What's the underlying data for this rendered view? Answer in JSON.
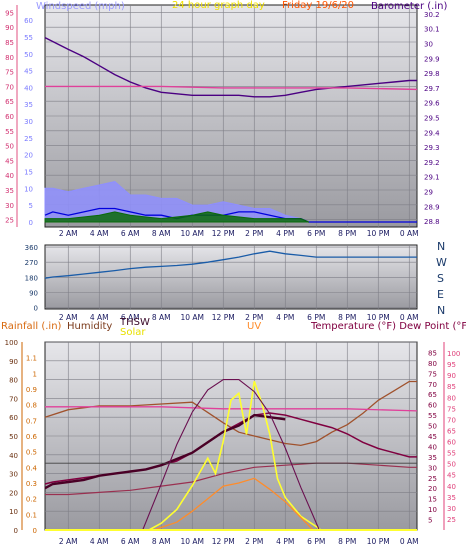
{
  "colors": {
    "background": "#ffffff",
    "plot_bg_top": "#e4e4e8",
    "plot_bg_bottom": "#9a9aa0",
    "grid": "#7e7e86",
    "frame": "#222222",
    "wind_avg": "#8f8fff",
    "wind_speed": "#0000dd",
    "wind_gust": "#0a6a0a",
    "barometer": "#4b0082",
    "hi_limit": "#e0409a",
    "wind_dir": "#1a5ca8",
    "humidity": "#a0522d",
    "thsw": "#4a0026",
    "solar": "#ffff30",
    "uv": "#ff8c2a",
    "temperature": "#800040",
    "dew_point": "#9a3050",
    "rain": "#cc6600"
  },
  "header": {
    "windspeed_label": "Windspeed (mph)",
    "title": "24 hour graph day",
    "date_label": "Friday 19/6/20",
    "barometer_label": "Barometer (.in)"
  },
  "x_ticks": [
    "2 AM",
    "4 AM",
    "6 AM",
    "8 AM",
    "10 AM",
    "12 PM",
    "2 PM",
    "4 PM",
    "6 PM",
    "8 PM",
    "10 PM",
    "0 AM"
  ],
  "panel_mid": {
    "compass": [
      "N",
      "W",
      "S",
      "E",
      "N"
    ]
  },
  "panel_bottom": {
    "rainfall_label": "Rainfall (.in)",
    "humidity_label": "Humidity",
    "thsw_label": "THSW",
    "solar_label": "Solar",
    "uv_label": "UV",
    "temp_label": "Temperature (°F) Dew Point (°F)"
  },
  "chart_data": [
    {
      "type": "line",
      "panel": "wind-barometer",
      "x_unit": "hour",
      "x_range": [
        0.5,
        24.5
      ],
      "axes": {
        "left_mph": {
          "ticks": [
            25,
            30,
            35,
            40,
            45,
            50,
            55,
            60,
            65,
            70,
            75,
            80,
            85,
            90,
            95
          ],
          "range": [
            22.5,
            97.5
          ]
        },
        "left_kmh": {
          "ticks": [
            0,
            5,
            10,
            15,
            20,
            25,
            30,
            35,
            40,
            45,
            50,
            55,
            60
          ],
          "range": [
            -1.5,
            64.5
          ]
        },
        "right_inHg": {
          "ticks": [
            28.8,
            28.9,
            29,
            29.1,
            29.2,
            29.3,
            29.4,
            29.5,
            29.6,
            29.7,
            29.8,
            29.9,
            30,
            30.1,
            30.2
          ],
          "range": [
            28.76,
            30.26
          ]
        }
      },
      "series": [
        {
          "name": "Barometer (.in)",
          "axis": "right_inHg",
          "x": [
            0.5,
            2,
            3,
            4,
            5,
            6,
            7,
            8,
            9,
            10,
            11,
            12,
            13,
            14,
            15,
            16,
            17,
            18,
            19,
            20,
            21,
            22,
            23,
            24,
            24.5
          ],
          "y": [
            30.04,
            29.96,
            29.91,
            29.85,
            29.79,
            29.74,
            29.7,
            29.67,
            29.66,
            29.65,
            29.65,
            29.65,
            29.65,
            29.64,
            29.64,
            29.65,
            29.67,
            29.69,
            29.7,
            29.71,
            29.72,
            29.73,
            29.74,
            29.75,
            29.75
          ]
        },
        {
          "name": "hi-limit",
          "axis": "right_inHg",
          "x": [
            0.5,
            4,
            8,
            12,
            16,
            20,
            24.5
          ],
          "y": [
            29.71,
            29.71,
            29.71,
            29.7,
            29.7,
            29.7,
            29.69
          ]
        },
        {
          "name": "wind-avg",
          "axis": "left_kmh",
          "x": [
            0.5,
            1,
            2,
            3,
            4,
            5,
            6,
            7,
            8,
            9,
            10,
            11,
            12,
            13,
            14,
            15,
            16,
            17,
            17.3
          ],
          "y": [
            10,
            10,
            9,
            10,
            11,
            12,
            8,
            8,
            7,
            7,
            5,
            5,
            6,
            5,
            4,
            4,
            2,
            1,
            0
          ]
        },
        {
          "name": "wind-speed",
          "axis": "left_kmh",
          "x": [
            0.5,
            1,
            2,
            3,
            4,
            5,
            6,
            7,
            8,
            9,
            10,
            11,
            12,
            13,
            14,
            15,
            16,
            17,
            17.5,
            24.5
          ],
          "y": [
            2,
            3,
            2,
            3,
            4,
            4,
            3,
            2,
            2,
            1,
            2,
            2,
            2,
            3,
            3,
            2,
            1,
            1,
            0,
            0
          ]
        },
        {
          "name": "wind-gust",
          "axis": "left_kmh",
          "x": [
            0.5,
            2,
            4,
            5,
            6,
            8,
            10,
            11,
            12,
            14,
            16,
            17,
            17.5
          ],
          "y": [
            1,
            1,
            2,
            3,
            2,
            1,
            2,
            3,
            2,
            1,
            1,
            1,
            0
          ]
        }
      ]
    },
    {
      "type": "line",
      "panel": "wind-direction",
      "x_unit": "hour",
      "x_range": [
        0.5,
        24.5
      ],
      "axes": {
        "left_deg": {
          "ticks": [
            0,
            90,
            180,
            270,
            360
          ],
          "range": [
            -8,
            372
          ]
        }
      },
      "series": [
        {
          "name": "wind-direction",
          "axis": "left_deg",
          "x": [
            0.5,
            1,
            2,
            3,
            4,
            5,
            6,
            7,
            8,
            9,
            10,
            11,
            12,
            13,
            14,
            15,
            16,
            17,
            18,
            19,
            20,
            21,
            22,
            23,
            24,
            24.5
          ],
          "y": [
            175,
            182,
            190,
            200,
            210,
            220,
            232,
            240,
            245,
            250,
            258,
            270,
            285,
            300,
            320,
            335,
            320,
            310,
            300,
            300,
            300,
            300,
            300,
            300,
            300,
            300
          ]
        }
      ]
    },
    {
      "type": "line",
      "panel": "temperature-solar",
      "x_unit": "hour",
      "x_range": [
        0.5,
        24.5
      ],
      "axes": {
        "humidity_pct": {
          "ticks": [
            0,
            10,
            20,
            30,
            40,
            50,
            60,
            70,
            80,
            90,
            100
          ],
          "range": [
            0,
            100
          ]
        },
        "rain_in": {
          "ticks": [
            0,
            0.1,
            0.2,
            0.3,
            0.4,
            0.5,
            0.6,
            0.7,
            0.8,
            0.9,
            1,
            1.1
          ],
          "range": [
            0,
            1.2
          ]
        },
        "temp_f": {
          "ticks": [
            5,
            10,
            15,
            20,
            25,
            30,
            35,
            40,
            45,
            50,
            55,
            60,
            65,
            70,
            75,
            80,
            85
          ],
          "range": [
            0,
            90
          ]
        },
        "dew_f": {
          "ticks": [
            25,
            30,
            35,
            40,
            45,
            50,
            55,
            60,
            65,
            70,
            75,
            80,
            85,
            90,
            95,
            100
          ],
          "range": [
            20,
            105
          ]
        },
        "solar_wm2": {
          "range": [
            0,
            1100
          ]
        },
        "uv_index": {
          "range": [
            0,
            12
          ]
        }
      },
      "series": [
        {
          "name": "humidity",
          "axis": "humidity_pct",
          "x": [
            0.5,
            2,
            4,
            6,
            8,
            10,
            12,
            13,
            14,
            15,
            16,
            17,
            18,
            19,
            20,
            21,
            22,
            23,
            24,
            24.5
          ],
          "y": [
            60,
            64,
            66,
            66,
            67,
            68,
            57,
            52,
            50,
            48,
            46,
            45,
            47,
            52,
            56,
            62,
            69,
            74,
            79,
            79
          ]
        },
        {
          "name": "temperature",
          "axis": "temp_f",
          "x": [
            0.5,
            1,
            2,
            3,
            4,
            5,
            6,
            7,
            8,
            9,
            10,
            11,
            12,
            13,
            14,
            15,
            16,
            17,
            18,
            19,
            20,
            21,
            22,
            23,
            24,
            24.5
          ],
          "y": [
            22,
            23,
            24,
            25,
            26,
            27,
            28,
            29,
            31,
            33,
            37,
            42,
            47,
            51,
            55,
            56,
            55,
            53,
            51,
            49,
            46,
            42,
            39,
            37,
            35,
            35
          ]
        },
        {
          "name": "thsw",
          "axis": "temp_f",
          "x": [
            0.5,
            1,
            2,
            3,
            4,
            5,
            6,
            7,
            8,
            9,
            10,
            11,
            12,
            13,
            14,
            15,
            16
          ],
          "y": [
            20,
            22,
            23,
            24,
            26,
            27,
            28,
            29,
            31,
            34,
            37,
            42,
            47,
            50,
            55,
            54,
            53
          ]
        },
        {
          "name": "dew-point",
          "axis": "temp_f",
          "x": [
            0.5,
            2,
            4,
            6,
            8,
            10,
            12,
            14,
            16,
            18,
            20,
            22,
            24,
            24.5
          ],
          "y": [
            17,
            17,
            18,
            19,
            21,
            23,
            27,
            30,
            31,
            32,
            32,
            31,
            30,
            30
          ]
        },
        {
          "name": "hi-limit",
          "axis": "temp_f",
          "x": [
            0.5,
            4,
            8,
            12,
            16,
            20,
            24.5
          ],
          "y": [
            59,
            59,
            59,
            58,
            58,
            58,
            57
          ]
        },
        {
          "name": "lo-limit",
          "axis": "temp_f",
          "x": [
            0.5,
            24.5
          ],
          "y": [
            32,
            32
          ]
        },
        {
          "name": "solar-radiation",
          "axis": "solar_wm2",
          "x": [
            7.2,
            8,
            9,
            10,
            11,
            11.5,
            12,
            12.5,
            13,
            13.5,
            14,
            14.5,
            15,
            15.5,
            16,
            17,
            18,
            18.3
          ],
          "y": [
            0,
            40,
            120,
            260,
            420,
            330,
            520,
            760,
            800,
            560,
            870,
            740,
            560,
            300,
            190,
            80,
            20,
            0
          ]
        },
        {
          "name": "solar-max",
          "axis": "solar_wm2",
          "x": [
            6.8,
            8,
            9,
            10,
            11,
            12,
            13,
            14,
            15,
            16,
            17,
            18.2
          ],
          "y": [
            0,
            270,
            500,
            690,
            820,
            880,
            880,
            810,
            680,
            480,
            250,
            0
          ]
        },
        {
          "name": "uv-index",
          "axis": "uv_index",
          "x": [
            7.5,
            9,
            10,
            11,
            12,
            13,
            14,
            15,
            16,
            17,
            17.8
          ],
          "y": [
            0,
            0.5,
            1.2,
            2.0,
            2.8,
            3.0,
            3.3,
            2.6,
            1.8,
            0.8,
            0
          ]
        },
        {
          "name": "rainfall",
          "axis": "rain_in",
          "x": [
            0.5,
            24.5
          ],
          "y": [
            0,
            0
          ]
        }
      ]
    }
  ]
}
